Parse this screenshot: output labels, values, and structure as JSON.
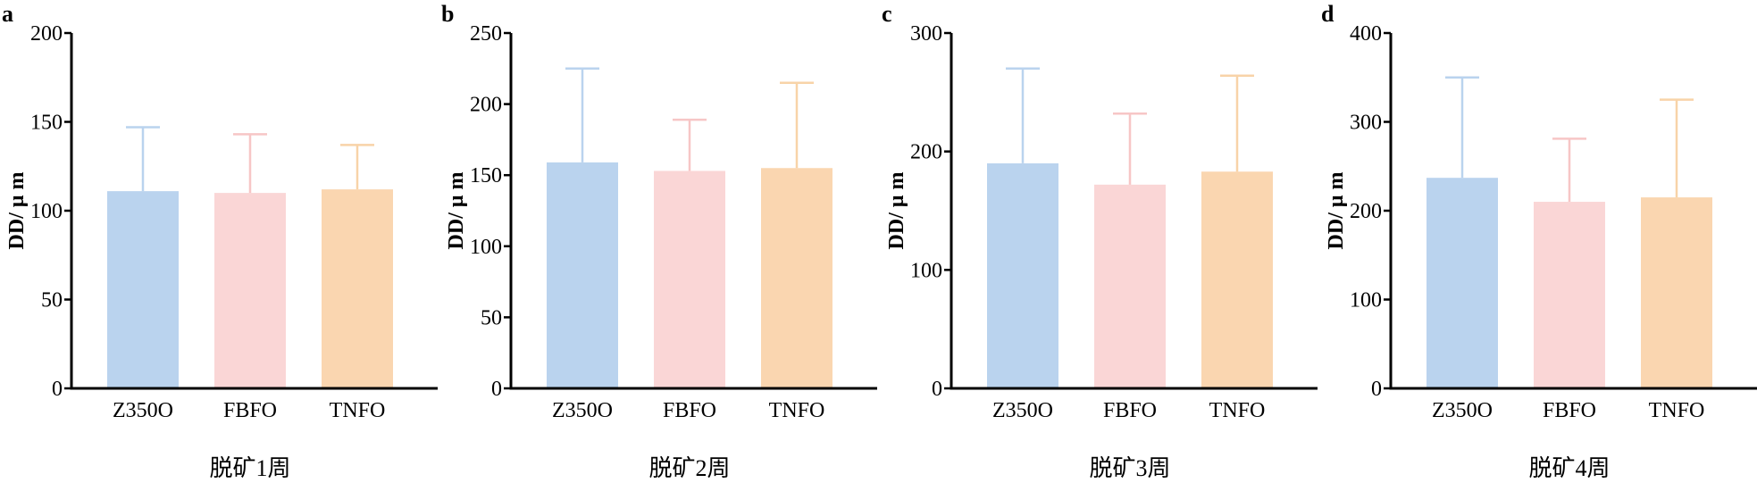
{
  "colors": {
    "bars": [
      "#bad3ee",
      "#fad6d6",
      "#fad6b0"
    ],
    "errors": [
      "#bad3ee",
      "#f7c6c6",
      "#f8d3a8"
    ],
    "axis": "#000000"
  },
  "chart_data": [
    {
      "type": "bar",
      "panel": "a",
      "categories": [
        "Z350O",
        "FBFO",
        "TNFO"
      ],
      "values": [
        111,
        110,
        112
      ],
      "errors_upper": [
        147,
        143,
        137
      ],
      "ylabel": "DD/ μ m",
      "xlabel": "脱矿1周",
      "ylim": [
        0,
        200
      ],
      "yticks": [
        0,
        50,
        100,
        150,
        200
      ],
      "grid": false
    },
    {
      "type": "bar",
      "panel": "b",
      "categories": [
        "Z350O",
        "FBFO",
        "TNFO"
      ],
      "values": [
        159,
        153,
        155
      ],
      "errors_upper": [
        225,
        189,
        215
      ],
      "ylabel": "DD/ μ m",
      "xlabel": "脱矿2周",
      "ylim": [
        0,
        250
      ],
      "yticks": [
        0,
        50,
        100,
        150,
        200,
        250
      ],
      "grid": false
    },
    {
      "type": "bar",
      "panel": "c",
      "categories": [
        "Z350O",
        "FBFO",
        "TNFO"
      ],
      "values": [
        190,
        172,
        183
      ],
      "errors_upper": [
        270,
        232,
        264
      ],
      "ylabel": "DD/ μ m",
      "xlabel": "脱矿3周",
      "ylim": [
        0,
        300
      ],
      "yticks": [
        0,
        100,
        200,
        300
      ],
      "grid": false
    },
    {
      "type": "bar",
      "panel": "d",
      "categories": [
        "Z350O",
        "FBFO",
        "TNFO"
      ],
      "values": [
        237,
        210,
        215
      ],
      "errors_upper": [
        350,
        281,
        325
      ],
      "ylabel": "DD/ μ m",
      "xlabel": "脱矿4周",
      "ylim": [
        0,
        400
      ],
      "yticks": [
        0,
        100,
        200,
        300,
        400
      ],
      "grid": false
    }
  ]
}
